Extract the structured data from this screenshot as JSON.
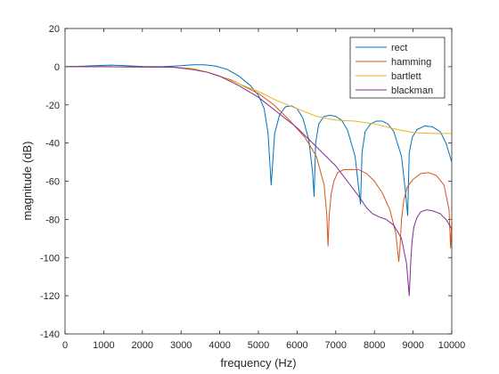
{
  "chart_data": {
    "type": "line",
    "title": "",
    "xlabel": "frequency (Hz)",
    "ylabel": "magnitude (dB)",
    "xlim": [
      0,
      10000
    ],
    "ylim": [
      -140,
      20
    ],
    "xticks": [
      0,
      1000,
      2000,
      3000,
      4000,
      5000,
      6000,
      7000,
      8000,
      9000,
      10000
    ],
    "yticks": [
      20,
      0,
      -20,
      -40,
      -60,
      -80,
      -100,
      -120,
      -140
    ],
    "grid": false,
    "legend_position": "top-right",
    "series": [
      {
        "name": "rect",
        "color": "#0072bd",
        "x": [
          0,
          500,
          1000,
          1200,
          1500,
          2000,
          2500,
          3000,
          3300,
          3600,
          3900,
          4200,
          4500,
          4800,
          5000,
          5150,
          5250,
          5330,
          5420,
          5550,
          5700,
          5850,
          6000,
          6150,
          6300,
          6400,
          6440,
          6480,
          6560,
          6700,
          6850,
          7000,
          7150,
          7300,
          7500,
          7600,
          7640,
          7680,
          7760,
          7900,
          8050,
          8200,
          8350,
          8500,
          8700,
          8800,
          8860,
          8900,
          8980,
          9100,
          9300,
          9500,
          9700,
          9850,
          10000
        ],
        "y": [
          0,
          0.3,
          0.7,
          0.8,
          0.6,
          0.1,
          0,
          0.5,
          1,
          1,
          0.3,
          -1.5,
          -5,
          -10,
          -15,
          -22,
          -35,
          -62,
          -35,
          -25,
          -21,
          -20.5,
          -22,
          -27,
          -38,
          -55,
          -68,
          -40,
          -30,
          -26,
          -25.5,
          -26,
          -28,
          -33,
          -47,
          -65,
          -72,
          -45,
          -34,
          -30,
          -28.5,
          -28.5,
          -30,
          -34,
          -47,
          -65,
          -78,
          -45,
          -37,
          -33,
          -31,
          -31.5,
          -34,
          -40,
          -50
        ]
      },
      {
        "name": "hamming",
        "color": "#d95319",
        "x": [
          0,
          1000,
          2000,
          2800,
          3300,
          3700,
          4000,
          4300,
          4600,
          5000,
          5400,
          5800,
          6200,
          6500,
          6700,
          6770,
          6800,
          6830,
          6880,
          6950,
          7050,
          7200,
          7400,
          7600,
          7800,
          8000,
          8200,
          8400,
          8550,
          8630,
          8660,
          8700,
          8760,
          8850,
          9000,
          9200,
          9400,
          9600,
          9800,
          9930,
          9970,
          10000
        ],
        "y": [
          0,
          0,
          -0.2,
          -0.3,
          -1,
          -3,
          -5,
          -7,
          -10,
          -14,
          -20,
          -28,
          -37,
          -47,
          -62,
          -78,
          -94,
          -78,
          -67,
          -60,
          -55.5,
          -54,
          -53.8,
          -54,
          -56,
          -60,
          -66,
          -75,
          -87,
          -102,
          -95,
          -80,
          -70,
          -63,
          -59,
          -56,
          -55.5,
          -57,
          -62,
          -75,
          -95,
          -80
        ]
      },
      {
        "name": "bartlett",
        "color": "#edb120",
        "x": [
          0,
          1000,
          2000,
          2800,
          3300,
          3700,
          4000,
          4500,
          5000,
          5500,
          6000,
          6500,
          7000,
          7500,
          8000,
          8500,
          9000,
          9500,
          10000
        ],
        "y": [
          0,
          0,
          -0.2,
          -0.3,
          -1,
          -3,
          -5,
          -9,
          -13,
          -18,
          -22,
          -26,
          -28,
          -28.5,
          -30,
          -32.5,
          -34.5,
          -35,
          -35
        ]
      },
      {
        "name": "blackman",
        "color": "#7e2f8e",
        "x": [
          0,
          1000,
          2000,
          2800,
          3300,
          3700,
          4000,
          4500,
          5000,
          5500,
          6000,
          6500,
          7000,
          7300,
          7600,
          7800,
          7950,
          8100,
          8300,
          8500,
          8700,
          8830,
          8900,
          8940,
          8970,
          9020,
          9100,
          9200,
          9350,
          9500,
          9700,
          9850,
          10000
        ],
        "y": [
          0,
          0,
          -0.2,
          -0.3,
          -1.5,
          -3,
          -5,
          -10,
          -16,
          -24,
          -32,
          -42,
          -52,
          -60,
          -68,
          -74,
          -77,
          -78.5,
          -80,
          -83,
          -90,
          -103,
          -120,
          -102,
          -92,
          -84,
          -79,
          -76,
          -75,
          -75.5,
          -77,
          -80,
          -85
        ]
      }
    ]
  }
}
